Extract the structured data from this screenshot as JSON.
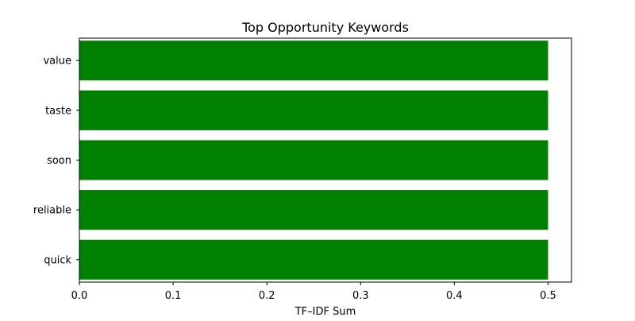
{
  "chart_data": {
    "type": "bar",
    "orientation": "horizontal",
    "title": "Top Opportunity Keywords",
    "xlabel": "TF–IDF Sum",
    "ylabel": "",
    "categories": [
      "quick",
      "reliable",
      "soon",
      "taste",
      "value"
    ],
    "values": [
      0.5,
      0.5,
      0.5,
      0.5,
      0.5
    ],
    "xlim": [
      0.0,
      0.525
    ],
    "xticks": [
      0.0,
      0.1,
      0.2,
      0.3,
      0.4,
      0.5
    ],
    "xtick_labels": [
      "0.0",
      "0.1",
      "0.2",
      "0.3",
      "0.4",
      "0.5"
    ],
    "bar_color": "#008000",
    "grid": false,
    "legend": "none"
  }
}
